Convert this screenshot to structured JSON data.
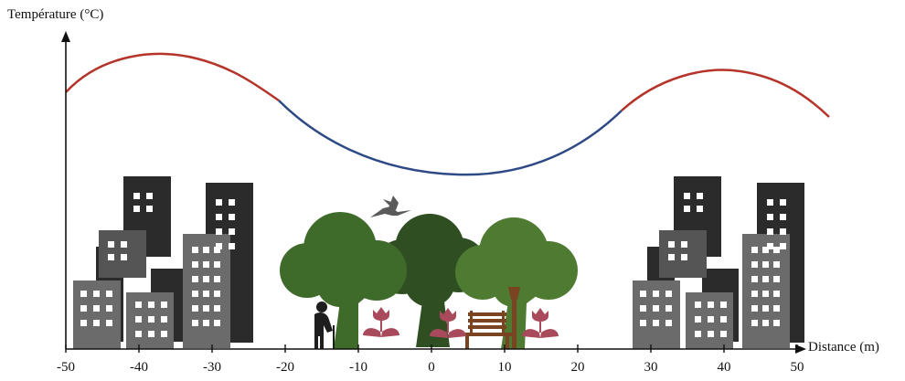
{
  "axes": {
    "y_label": "Température (°C)",
    "x_label": "Distance (m)",
    "x_ticks": [
      "-50",
      "-40",
      "-30",
      "-20",
      "-10",
      "0",
      "10",
      "20",
      "30",
      "40",
      "50"
    ]
  },
  "curve": {
    "description_colors": {
      "warm": "#b5342a",
      "cool": "#2e4a86"
    }
  },
  "colors": {
    "building_dark": "#2b2b2b",
    "building_mid": "#4a4a4a",
    "building_light": "#6b6b6b",
    "window": "#ffffff",
    "tree_light": "#4e7a32",
    "tree_mid": "#3e6a2a",
    "tree_dark": "#2f4f22",
    "trunk": "#2f5222",
    "tulip": "#a84a5c",
    "bench": "#7a4322",
    "bird": "#5a5a5a",
    "person": "#1e1e1e"
  }
}
